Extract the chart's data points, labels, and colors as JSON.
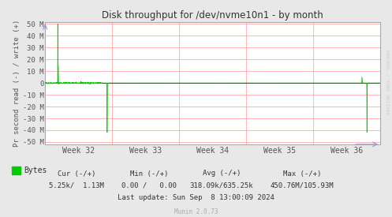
{
  "title": "Disk throughput for /dev/nvme10n1 - by month",
  "ylabel": "Pr second read (-) / write (+)",
  "xlabel_ticks": [
    "Week 32",
    "Week 33",
    "Week 34",
    "Week 35",
    "Week 36"
  ],
  "ylim": [
    -52000000,
    52000000
  ],
  "yticks": [
    -50000000,
    -40000000,
    -30000000,
    -20000000,
    -10000000,
    0,
    10000000,
    20000000,
    30000000,
    40000000,
    50000000
  ],
  "ytick_labels": [
    "-50 M",
    "-40 M",
    "-30 M",
    "-20 M",
    "-10 M",
    "0",
    "10 M",
    "20 M",
    "30 M",
    "40 M",
    "50 M"
  ],
  "bg_color": "#e8e8e8",
  "plot_bg_color": "#ffffff",
  "grid_color": "#ff9999",
  "line_color": "#00cc00",
  "fill_color": "#00cc00",
  "border_color": "#aaaaaa",
  "title_color": "#333333",
  "axis_label_color": "#555555",
  "tick_label_color": "#555555",
  "legend_text": "Bytes",
  "last_update": "Last update: Sun Sep  8 13:00:09 2024",
  "munin_version": "Munin 2.0.73",
  "watermark": "RRDTOOL / TOBI OETIKER",
  "cur_header": "Cur (-/+)",
  "min_header": "Min (-/+)",
  "avg_header": "Avg (-/+)",
  "max_header": "Max (-/+)",
  "cur_val": "5.25k/  1.13M",
  "min_val": "0.00 /   0.00",
  "avg_val": "318.09k/635.25k",
  "max_val": "450.76M/105.93M"
}
